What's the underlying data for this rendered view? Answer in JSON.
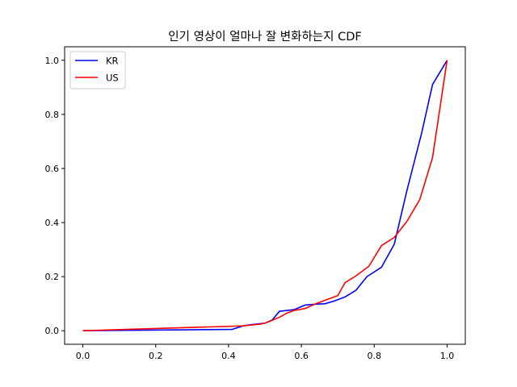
{
  "chart_data": {
    "type": "line",
    "title": "인기 영상이 얼마나 잘 변화하는지 CDF",
    "xlabel": "",
    "ylabel": "",
    "xlim": [
      -0.05,
      1.05
    ],
    "ylim": [
      -0.05,
      1.05
    ],
    "xticks": [
      "0.0",
      "0.2",
      "0.4",
      "0.6",
      "0.8",
      "1.0"
    ],
    "yticks": [
      "0.0",
      "0.2",
      "0.4",
      "0.6",
      "0.8",
      "1.0"
    ],
    "grid": false,
    "legend_position": "top-left",
    "series": [
      {
        "name": "KR",
        "color": "#0000ff",
        "x": [
          0.0,
          0.41,
          0.44,
          0.46,
          0.5,
          0.52,
          0.54,
          0.58,
          0.61,
          0.64,
          0.665,
          0.69,
          0.72,
          0.75,
          0.78,
          0.82,
          0.855,
          0.89,
          0.93,
          0.96,
          1.0
        ],
        "y": [
          0.0,
          0.005,
          0.018,
          0.022,
          0.028,
          0.04,
          0.072,
          0.078,
          0.095,
          0.098,
          0.1,
          0.11,
          0.125,
          0.15,
          0.2,
          0.235,
          0.32,
          0.52,
          0.73,
          0.91,
          1.0
        ]
      },
      {
        "name": "US",
        "color": "#ff0000",
        "x": [
          0.0,
          0.44,
          0.49,
          0.51,
          0.54,
          0.56,
          0.58,
          0.61,
          0.64,
          0.67,
          0.7,
          0.72,
          0.75,
          0.785,
          0.82,
          0.855,
          0.89,
          0.925,
          0.96,
          1.0
        ],
        "y": [
          0.0,
          0.018,
          0.025,
          0.033,
          0.05,
          0.065,
          0.075,
          0.082,
          0.1,
          0.115,
          0.13,
          0.178,
          0.203,
          0.238,
          0.315,
          0.345,
          0.405,
          0.485,
          0.64,
          1.0
        ]
      }
    ]
  }
}
